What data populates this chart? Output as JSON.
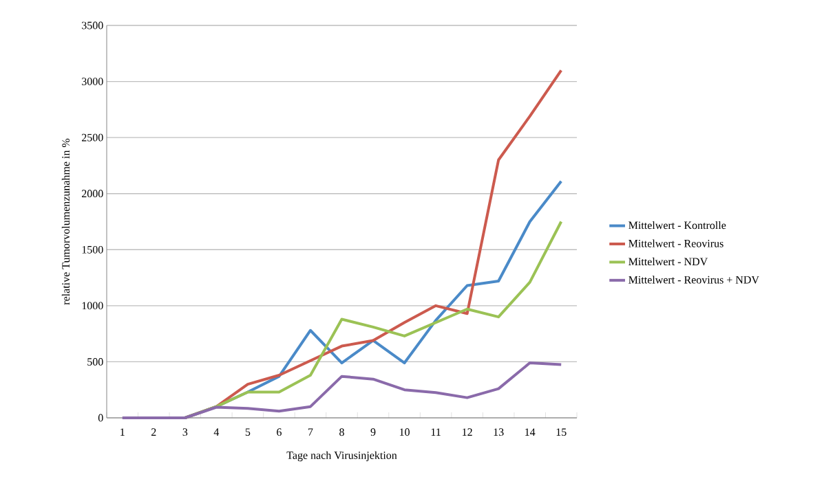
{
  "chart_data": {
    "type": "line",
    "xlabel": "Tage nach Virusinjektion",
    "ylabel": "relative Tumorvolumenzunahme in %",
    "categories": [
      "1",
      "2",
      "3",
      "4",
      "5",
      "6",
      "7",
      "8",
      "9",
      "10",
      "11",
      "12",
      "13",
      "14",
      "15"
    ],
    "series": [
      {
        "name": "Mittelwert - Kontrolle",
        "color": "#4a8ac8",
        "values": [
          null,
          null,
          0,
          100,
          230,
          370,
          780,
          490,
          690,
          490,
          870,
          1180,
          1220,
          1750,
          2110
        ]
      },
      {
        "name": "Mittelwert - Reovirus",
        "color": "#cc5a4e",
        "values": [
          null,
          null,
          0,
          100,
          300,
          380,
          510,
          640,
          690,
          850,
          1000,
          930,
          2300,
          2690,
          3100
        ]
      },
      {
        "name": "Mittelwert - NDV",
        "color": "#9bc255",
        "values": [
          null,
          null,
          0,
          100,
          230,
          230,
          380,
          880,
          810,
          730,
          850,
          970,
          900,
          1210,
          1750
        ]
      },
      {
        "name": "Mittelwert - Reovirus + NDV",
        "color": "#8a6aaa",
        "values": [
          0,
          0,
          0,
          95,
          85,
          60,
          100,
          370,
          345,
          250,
          225,
          180,
          260,
          490,
          475
        ]
      }
    ],
    "ylim": [
      0,
      3500
    ],
    "yticks": [
      0,
      500,
      1000,
      1500,
      2000,
      2500,
      3000,
      3500
    ],
    "grid": "y",
    "legend": "right",
    "marker": "none",
    "line_style": "solid"
  }
}
